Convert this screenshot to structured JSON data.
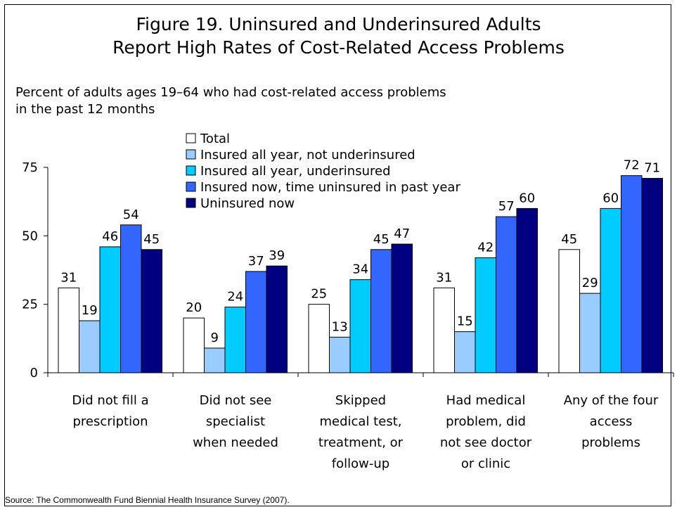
{
  "chart_data": {
    "type": "bar",
    "title_line1": "Figure 19. Uninsured and Underinsured Adults",
    "title_line2": "Report High Rates of Cost-Related Access Problems",
    "subtitle_line1": "Percent of adults ages 19–64 who had cost-related access problems",
    "subtitle_line2": "in the past 12 months",
    "source": "Source: The Commonwealth Fund Biennial Health Insurance Survey (2007).",
    "ylim": [
      0,
      75
    ],
    "yticks": [
      "0",
      "25",
      "50",
      "75"
    ],
    "grid": false,
    "legend_position": "top-center",
    "categories": [
      [
        "Did not fill a",
        "prescription"
      ],
      [
        "Did not see",
        "specialist",
        "when needed"
      ],
      [
        "Skipped",
        "medical test,",
        "treatment, or",
        "follow-up"
      ],
      [
        "Had medical",
        "problem, did",
        "not see doctor",
        "or clinic"
      ],
      [
        "Any of the four",
        "access",
        "problems"
      ]
    ],
    "series": [
      {
        "name": "Total",
        "color": "#ffffff",
        "values": [
          31,
          20,
          25,
          31,
          45
        ]
      },
      {
        "name": "Insured all year, not underinsured",
        "color": "#99ccff",
        "values": [
          19,
          9,
          13,
          15,
          29
        ]
      },
      {
        "name": "Insured all year, underinsured",
        "color": "#00ccff",
        "values": [
          46,
          24,
          34,
          42,
          60
        ]
      },
      {
        "name": "Insured now, time uninsured in past year",
        "color": "#3366ff",
        "values": [
          54,
          37,
          45,
          57,
          72
        ]
      },
      {
        "name": "Uninsured now",
        "color": "#000080",
        "values": [
          45,
          39,
          47,
          60,
          71
        ]
      }
    ]
  }
}
